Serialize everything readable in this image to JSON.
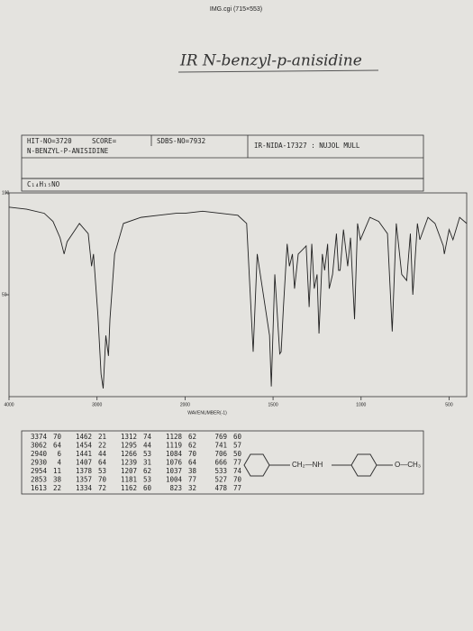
{
  "browser_label": "IMG.cgi (715×553)",
  "header": {
    "hit": "HIT-NO=3720",
    "score": "SCORE=",
    "sdbs": "SDBS-NO=7932",
    "nida": "IR-NIDA-17327 : NUJOL MULL",
    "compound": "N-BENZYL-P-ANISIDINE",
    "formula": "C₁₄H₁₅NO"
  },
  "chart_data": {
    "type": "line",
    "title": "IR N-benzyl-p-anisidine",
    "x_label": "WAVENUMBER(-1)",
    "xlim": [
      4000,
      400
    ],
    "xticks": [
      4000,
      3000,
      2000,
      1500,
      1000,
      500
    ],
    "ylim": [
      0,
      100
    ],
    "yticks": [
      50,
      100
    ],
    "color": "#222222",
    "x": [
      4000,
      3800,
      3600,
      3500,
      3420,
      3374,
      3340,
      3200,
      3100,
      3062,
      3040,
      2990,
      2954,
      2930,
      2900,
      2870,
      2853,
      2800,
      2700,
      2500,
      2300,
      2100,
      2000,
      1900,
      1800,
      1700,
      1650,
      1613,
      1590,
      1520,
      1510,
      1490,
      1462,
      1454,
      1441,
      1420,
      1407,
      1390,
      1378,
      1357,
      1334,
      1312,
      1295,
      1280,
      1266,
      1250,
      1239,
      1220,
      1207,
      1190,
      1181,
      1162,
      1140,
      1128,
      1119,
      1100,
      1084,
      1076,
      1060,
      1037,
      1020,
      1004,
      950,
      900,
      850,
      823,
      800,
      769,
      741,
      720,
      706,
      680,
      666,
      620,
      580,
      533,
      527,
      500,
      478,
      440,
      400
    ],
    "values": [
      93,
      92,
      90,
      86,
      78,
      70,
      76,
      85,
      80,
      64,
      70,
      40,
      11,
      4,
      30,
      20,
      38,
      70,
      85,
      88,
      89,
      90,
      90,
      91,
      90,
      89,
      85,
      22,
      70,
      30,
      5,
      60,
      21,
      22,
      44,
      75,
      64,
      70,
      53,
      70,
      72,
      74,
      44,
      75,
      53,
      60,
      31,
      70,
      62,
      75,
      53,
      60,
      80,
      62,
      62,
      82,
      70,
      64,
      78,
      38,
      85,
      77,
      88,
      86,
      80,
      32,
      85,
      60,
      57,
      80,
      50,
      85,
      77,
      88,
      85,
      74,
      70,
      82,
      77,
      88,
      85
    ],
    "peaks": {
      "wavenumber": [
        3374,
        3062,
        2940,
        2930,
        2954,
        2853,
        1613,
        1462,
        1454,
        1441,
        1407,
        1378,
        1357,
        1334,
        1312,
        1295,
        1266,
        1239,
        1207,
        1181,
        1162,
        1128,
        1119,
        1084,
        1076,
        1037,
        1004,
        823,
        769,
        741,
        706,
        666,
        533,
        527,
        478
      ],
      "transmittance": [
        70,
        64,
        6,
        4,
        11,
        38,
        22,
        21,
        22,
        44,
        64,
        53,
        70,
        72,
        74,
        44,
        53,
        31,
        62,
        53,
        60,
        62,
        62,
        70,
        64,
        38,
        77,
        32,
        60,
        57,
        50,
        77,
        74,
        70,
        77
      ]
    }
  },
  "structure": {
    "linker": "CH₂—NH",
    "substituent": "O—CH₃"
  }
}
